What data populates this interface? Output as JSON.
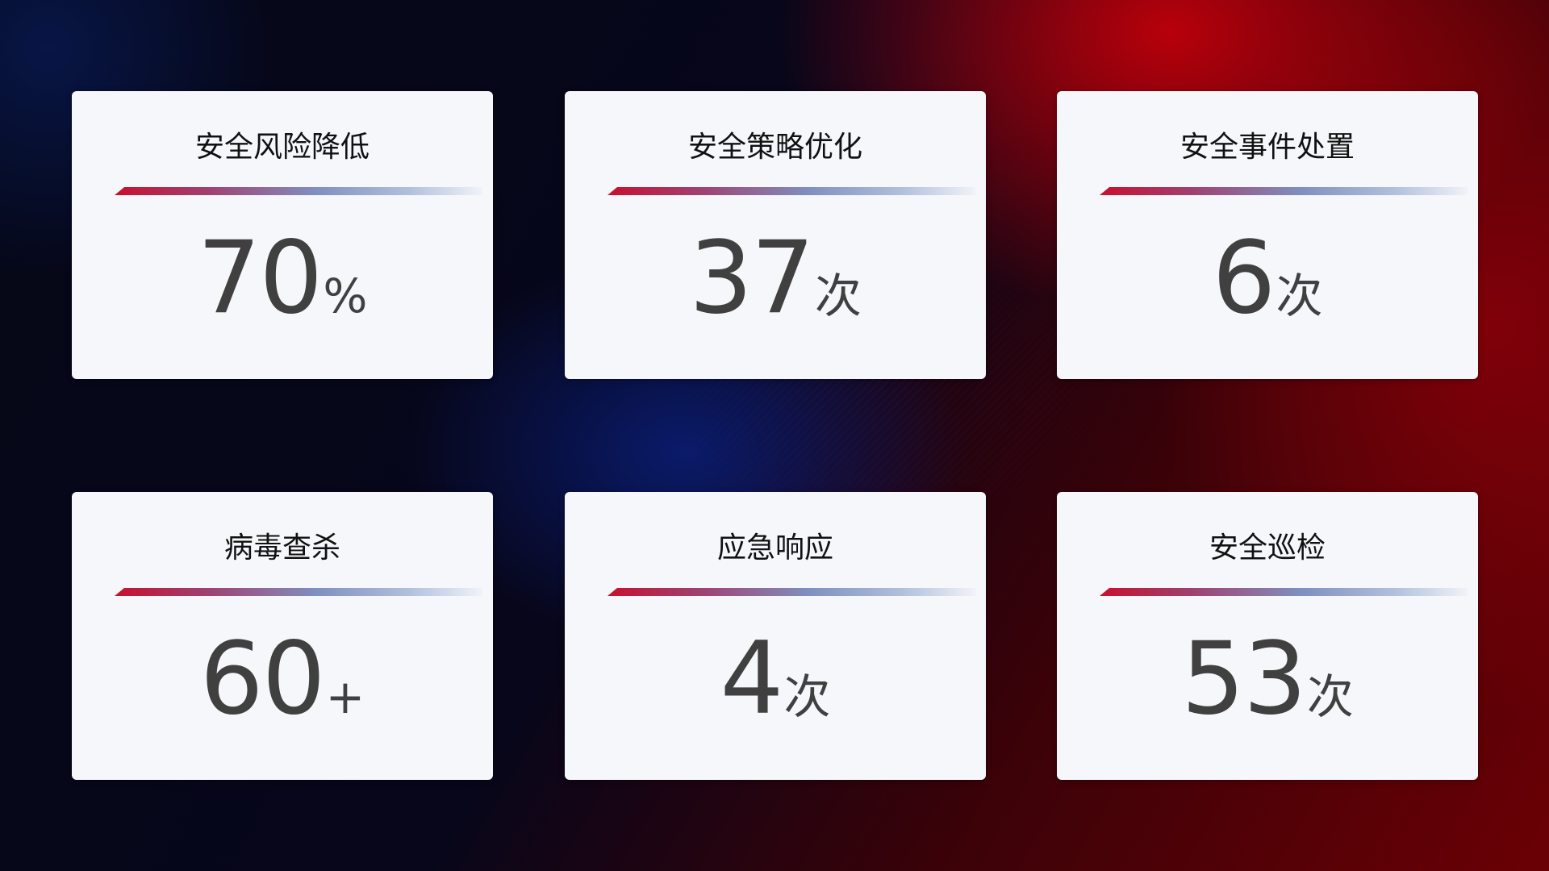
{
  "cards": [
    {
      "title": "安全风险降低",
      "value": "70",
      "unit": "%"
    },
    {
      "title": "安全策略优化",
      "value": "37",
      "unit": "次"
    },
    {
      "title": "安全事件处置",
      "value": "6",
      "unit": "次"
    },
    {
      "title": "病毒查杀",
      "value": "60",
      "unit": "+"
    },
    {
      "title": "应急响应",
      "value": "4",
      "unit": "次"
    },
    {
      "title": "安全巡检",
      "value": "53",
      "unit": "次"
    }
  ],
  "colors": {
    "accent_red": "#c8102e",
    "accent_blue": "#7f90c0",
    "card_bg": "#f6f7fb",
    "value_text": "#404040"
  }
}
